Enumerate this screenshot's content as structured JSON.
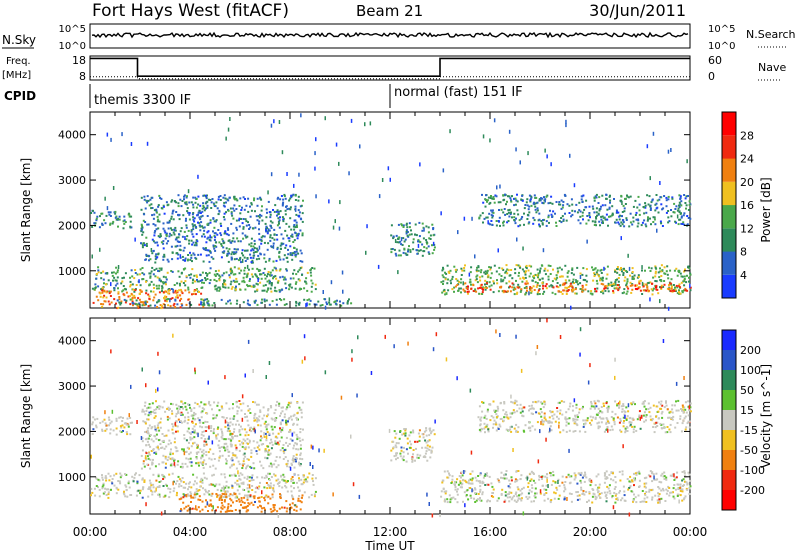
{
  "header": {
    "station": "Fort Hays West (fitACF)",
    "beam": "Beam 21",
    "date": "30/Jun/2011"
  },
  "top_panels": {
    "nsky_label": "N.Sky",
    "nsearch_label": "N.Search",
    "nsky_ticks": [
      "10^5",
      "10^0"
    ],
    "nsearch_ticks": [
      "10^5",
      "10^0"
    ],
    "freq_label": "Freq.",
    "freq_unit": "[MHz]",
    "freq_ticks": [
      "18",
      "8"
    ],
    "nave_label": "Nave",
    "nave_ticks": [
      "60",
      "0"
    ],
    "cpid_label": "CPID",
    "modes": [
      "themis 3300 IF",
      "normal (fast) 151 IF"
    ]
  },
  "axes": {
    "ylabel": "Slant Range [km]",
    "xlabel": "Time UT",
    "y_ticks": [
      "1000",
      "2000",
      "3000",
      "4000"
    ],
    "x_ticks": [
      "00:00",
      "04:00",
      "08:00",
      "12:00",
      "16:00",
      "20:00",
      "00:00"
    ]
  },
  "colorbars": {
    "power": {
      "label": "Power [dB]",
      "ticks": [
        "4",
        "8",
        "12",
        "16",
        "20",
        "24",
        "28"
      ],
      "colors": [
        "#1a3cff",
        "#2a62c8",
        "#2e8a5a",
        "#4aa84a",
        "#f0c020",
        "#f08010",
        "#f02a10",
        "#ff0000"
      ]
    },
    "velocity": {
      "label": "Velocity [m s^-1]",
      "ticks": [
        "200",
        "100",
        "50",
        "15",
        "-15",
        "-50",
        "-100",
        "-200"
      ],
      "colors": [
        "#1a2aff",
        "#2a56c8",
        "#2e8a5a",
        "#5cc030",
        "#c8c8c0",
        "#f0c020",
        "#f08010",
        "#f02a10",
        "#ff0000"
      ]
    }
  },
  "chart_data": [
    {
      "type": "heatmap",
      "title": "Power",
      "xlabel": "Time UT",
      "ylabel": "Slant Range [km]",
      "xlim": [
        "00:00",
        "24:00"
      ],
      "ylim": [
        180,
        4500
      ],
      "value_label": "Power [dB]",
      "value_range": [
        0,
        30
      ],
      "echo_bands": [
        {
          "start_h": 0.0,
          "end_h": 1.7,
          "range_km": [
            1950,
            2350
          ],
          "level_db": 10
        },
        {
          "start_h": 2.0,
          "end_h": 8.5,
          "range_km": [
            1200,
            2700
          ],
          "level_db": 8
        },
        {
          "start_h": 0.0,
          "end_h": 9.0,
          "range_km": [
            550,
            1100
          ],
          "level_db": 12
        },
        {
          "start_h": 0.0,
          "end_h": 4.5,
          "range_km": [
            200,
            600
          ],
          "level_db": 22
        },
        {
          "start_h": 1.0,
          "end_h": 10.5,
          "range_km": [
            250,
            400
          ],
          "level_db": 10
        },
        {
          "start_h": 12.0,
          "end_h": 13.8,
          "range_km": [
            1350,
            2100
          ],
          "level_db": 10
        },
        {
          "start_h": 14.0,
          "end_h": 24.0,
          "range_km": [
            500,
            1150
          ],
          "level_db": 14
        },
        {
          "start_h": 14.5,
          "end_h": 24.0,
          "range_km": [
            550,
            750
          ],
          "level_db": 24
        },
        {
          "start_h": 15.5,
          "end_h": 24.0,
          "range_km": [
            2000,
            2700
          ],
          "level_db": 8
        }
      ]
    },
    {
      "type": "heatmap",
      "title": "Velocity",
      "xlabel": "Time UT",
      "ylabel": "Slant Range [km]",
      "xlim": [
        "00:00",
        "24:00"
      ],
      "ylim": [
        180,
        4500
      ],
      "value_label": "Velocity [m s^-1]",
      "value_range": [
        -200,
        200
      ],
      "echo_bands": [
        {
          "start_h": 0.0,
          "end_h": 1.7,
          "range_km": [
            1950,
            2350
          ],
          "velocity_ms": 0
        },
        {
          "start_h": 2.0,
          "end_h": 8.5,
          "range_km": [
            1200,
            2700
          ],
          "velocity_ms": 0
        },
        {
          "start_h": 0.0,
          "end_h": 9.0,
          "range_km": [
            550,
            1100
          ],
          "velocity_ms": 0
        },
        {
          "start_h": 3.5,
          "end_h": 8.5,
          "range_km": [
            250,
            650
          ],
          "velocity_ms": -80
        },
        {
          "start_h": 12.0,
          "end_h": 13.8,
          "range_km": [
            1350,
            2100
          ],
          "velocity_ms": 0
        },
        {
          "start_h": 14.0,
          "end_h": 24.0,
          "range_km": [
            450,
            1150
          ],
          "velocity_ms": 0
        },
        {
          "start_h": 15.5,
          "end_h": 24.0,
          "range_km": [
            2000,
            2700
          ],
          "velocity_ms": 0
        }
      ]
    }
  ]
}
